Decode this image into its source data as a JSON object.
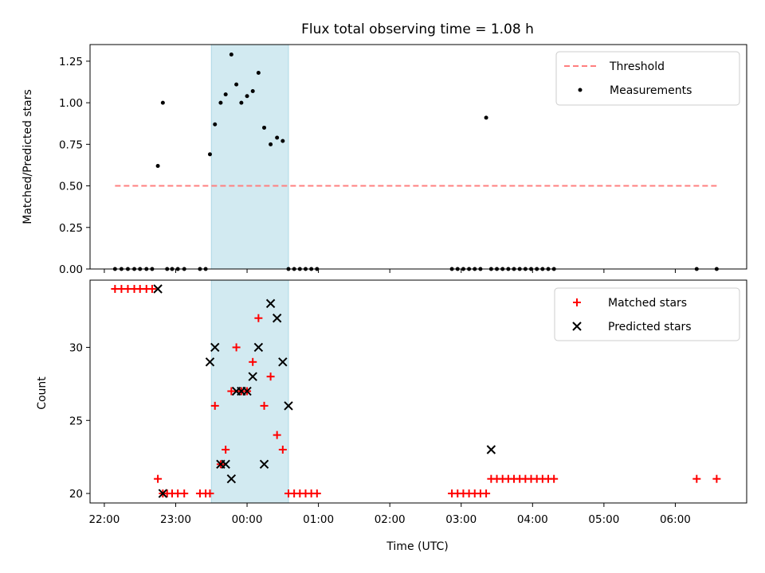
{
  "chart_data": [
    {
      "type": "scatter",
      "title": "Flux total observing time = 1.08 h",
      "xlabel": "",
      "ylabel": "Matched/Predicted stars",
      "ylim": [
        0,
        1.35
      ],
      "yticks": [
        0.0,
        0.25,
        0.5,
        0.75,
        1.0,
        1.25
      ],
      "ytick_labels": [
        "0.00",
        "0.25",
        "0.50",
        "0.75",
        "1.00",
        "1.25"
      ],
      "xlim": [
        -2.2,
        7.0
      ],
      "shaded_span": [
        -0.5,
        0.58
      ],
      "shaded_color": "#add8e6",
      "legend": {
        "placement": "upper right",
        "entries": [
          "Threshold",
          "Measurements"
        ]
      },
      "series": [
        {
          "name": "Threshold",
          "kind": "line",
          "style": "dashed",
          "color": "#ff7f7f",
          "x": [
            -1.85,
            6.6
          ],
          "y": [
            0.5,
            0.5
          ]
        },
        {
          "name": "Measurements",
          "kind": "scatter",
          "color": "#000000",
          "x": [
            -1.85,
            -1.76,
            -1.67,
            -1.58,
            -1.5,
            -1.41,
            -1.33,
            -1.25,
            -1.18,
            -1.12,
            -1.05,
            -0.97,
            -0.88,
            -0.66,
            -0.58,
            -0.52,
            -0.45,
            -0.37,
            -0.3,
            -0.22,
            -0.15,
            -0.08,
            0.0,
            0.08,
            0.16,
            0.24,
            0.33,
            0.42,
            0.5,
            0.58,
            0.66,
            0.74,
            0.82,
            0.9,
            0.98,
            2.87,
            2.95,
            3.03,
            3.11,
            3.19,
            3.27,
            3.35,
            3.42,
            3.5,
            3.58,
            3.66,
            3.74,
            3.82,
            3.9,
            3.98,
            4.06,
            4.14,
            4.22,
            4.3,
            6.3,
            6.58
          ],
          "y": [
            0,
            0,
            0,
            0,
            0,
            0,
            0,
            0.62,
            1.0,
            0,
            0,
            0,
            0,
            0,
            0,
            0.69,
            0.87,
            1.0,
            1.05,
            1.29,
            1.11,
            1.0,
            1.04,
            1.07,
            1.18,
            0.85,
            0.75,
            0.79,
            0.77,
            0,
            0,
            0,
            0,
            0,
            0,
            0,
            0,
            0,
            0,
            0,
            0,
            0.91,
            0,
            0,
            0,
            0,
            0,
            0,
            0,
            0,
            0,
            0,
            0,
            0,
            0,
            0
          ]
        }
      ]
    },
    {
      "type": "scatter",
      "title": "",
      "xlabel": "Time (UTC)",
      "ylabel": "Count",
      "ylim": [
        19.35,
        34.6
      ],
      "yticks": [
        20,
        25,
        30
      ],
      "ytick_labels": [
        "20",
        "25",
        "30"
      ],
      "xlim": [
        -2.2,
        7.0
      ],
      "xticks": [
        -2,
        -1,
        0,
        1,
        2,
        3,
        4,
        5,
        6
      ],
      "xtick_labels": [
        "22:00",
        "23:00",
        "00:00",
        "01:00",
        "02:00",
        "03:00",
        "04:00",
        "05:00",
        "06:00"
      ],
      "shaded_span": [
        -0.5,
        0.58
      ],
      "shaded_color": "#add8e6",
      "legend": {
        "placement": "upper right",
        "entries": [
          "Matched stars",
          "Predicted stars"
        ]
      },
      "series": [
        {
          "name": "Matched stars",
          "kind": "scatter",
          "marker": "plus",
          "color": "#ff0000",
          "x": [
            -1.85,
            -1.76,
            -1.67,
            -1.58,
            -1.5,
            -1.41,
            -1.33,
            -1.25,
            -1.18,
            -1.12,
            -1.05,
            -0.97,
            -0.88,
            -0.66,
            -0.58,
            -0.52,
            -0.45,
            -0.37,
            -0.3,
            -0.22,
            -0.15,
            -0.08,
            0.0,
            0.08,
            0.16,
            0.24,
            0.33,
            0.42,
            0.5,
            0.58,
            0.66,
            0.74,
            0.82,
            0.9,
            0.98,
            2.87,
            2.95,
            3.03,
            3.11,
            3.19,
            3.27,
            3.35,
            3.42,
            3.5,
            3.58,
            3.66,
            3.74,
            3.82,
            3.9,
            3.98,
            4.06,
            4.14,
            4.22,
            4.3,
            6.3,
            6.58
          ],
          "y": [
            34,
            34,
            34,
            34,
            34,
            34,
            34,
            21,
            20,
            20,
            20,
            20,
            20,
            20,
            20,
            20,
            26,
            22,
            23,
            27,
            30,
            27,
            27,
            29,
            32,
            26,
            28,
            24,
            23,
            20,
            20,
            20,
            20,
            20,
            20,
            20,
            20,
            20,
            20,
            20,
            20,
            20,
            21,
            21,
            21,
            21,
            21,
            21,
            21,
            21,
            21,
            21,
            21,
            21,
            21,
            21
          ]
        },
        {
          "name": "Predicted stars",
          "kind": "scatter",
          "marker": "x",
          "color": "#000000",
          "x": [
            -1.25,
            -1.18,
            -0.52,
            -0.45,
            -0.37,
            -0.3,
            -0.22,
            -0.15,
            -0.08,
            0.0,
            0.08,
            0.16,
            0.24,
            0.33,
            0.42,
            0.5,
            0.58,
            3.42
          ],
          "y": [
            34,
            20,
            29,
            30,
            22,
            22,
            21,
            27,
            27,
            27,
            28,
            30,
            22,
            33,
            32,
            29,
            26,
            23
          ]
        }
      ]
    }
  ]
}
